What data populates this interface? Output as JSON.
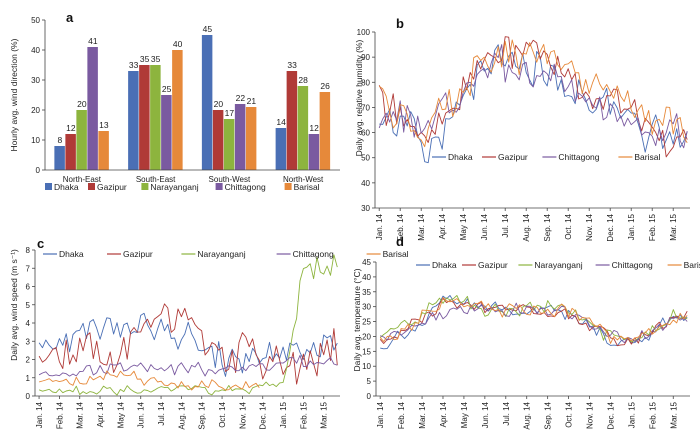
{
  "colors": {
    "Dhaka": "#4a6fb5",
    "Gazipur": "#b03a37",
    "Narayanganj": "#8db43e",
    "Chittagong": "#7a5aa0",
    "Barisal": "#e6893a"
  },
  "chart_data": [
    {
      "panel": "a",
      "type": "bar",
      "ylabel": "Hourly avg. wind direction (%)",
      "ylim": [
        0,
        50
      ],
      "yticks": [
        0,
        10,
        20,
        30,
        40,
        50
      ],
      "categories": [
        "North-East",
        "South-East",
        "South-West",
        "North-West"
      ],
      "series": [
        {
          "name": "Dhaka",
          "values": [
            8,
            33,
            45,
            14
          ]
        },
        {
          "name": "Gazipur",
          "values": [
            12,
            35,
            20,
            33
          ]
        },
        {
          "name": "Narayanganj",
          "values": [
            20,
            35,
            17,
            28
          ]
        },
        {
          "name": "Chittagong",
          "values": [
            41,
            25,
            22,
            12
          ]
        },
        {
          "name": "Barisal",
          "values": [
            13,
            40,
            21,
            26
          ]
        }
      ]
    },
    {
      "panel": "b",
      "type": "line",
      "ylabel": "Daily avg. relative humidity (%)",
      "ylim": [
        30,
        100
      ],
      "yticks": [
        30,
        40,
        50,
        60,
        70,
        80,
        90,
        100
      ],
      "x": [
        "Jan. 14",
        "Feb. 14",
        "Mar. 14",
        "Apr. 14",
        "May 14",
        "Jun. 14",
        "Jul. 14",
        "Aug. 14",
        "Sep. 14",
        "Oct. 14",
        "Nov. 14",
        "Dec. 14",
        "Jan. 15",
        "Feb. 15",
        "Mar. 15"
      ],
      "series": [
        {
          "name": "Dhaka",
          "values": [
            70,
            62,
            52,
            60,
            75,
            86,
            90,
            88,
            84,
            78,
            72,
            70,
            68,
            58,
            55
          ]
        },
        {
          "name": "Gazipur",
          "values": [
            74,
            66,
            56,
            64,
            79,
            90,
            94,
            95,
            88,
            82,
            75,
            73,
            71,
            62,
            58
          ]
        },
        {
          "name": "Chittagong",
          "values": [
            68,
            64,
            60,
            68,
            78,
            87,
            89,
            88,
            85,
            79,
            72,
            67,
            65,
            60,
            59
          ]
        },
        {
          "name": "Barisal",
          "values": [
            76,
            70,
            60,
            66,
            80,
            89,
            92,
            91,
            87,
            83,
            77,
            76,
            74,
            66,
            62
          ]
        }
      ],
      "legend": "center"
    },
    {
      "panel": "c",
      "type": "line",
      "ylabel": "Daily avg. wind speed (m s⁻¹)",
      "ylim": [
        0,
        8
      ],
      "yticks": [
        0,
        1,
        2,
        3,
        4,
        5,
        6,
        7,
        8
      ],
      "x": [
        "Jan. 14",
        "Feb. 14",
        "Mar. 14",
        "Apr. 14",
        "May 14",
        "Jun. 14",
        "Jul. 14",
        "Aug. 14",
        "Sep. 14",
        "Oct. 14",
        "Nov. 14",
        "Dec. 14",
        "Jan. 15",
        "Feb. 15",
        "Mar. 15"
      ],
      "series": [
        {
          "name": "Dhaka",
          "values": [
            2.3,
            2.6,
            3.0,
            3.4,
            3.6,
            3.8,
            3.4,
            3.0,
            2.6,
            2.2,
            2.0,
            2.0,
            2.2,
            2.6,
            2.8
          ]
        },
        {
          "name": "Gazipur",
          "values": [
            1.9,
            2.0,
            2.2,
            2.4,
            2.8,
            3.2,
            4.6,
            3.8,
            3.2,
            2.6,
            2.4,
            1.8,
            1.7,
            1.9,
            2.2
          ]
        },
        {
          "name": "Narayanganj",
          "values": [
            0.3,
            0.3,
            0.3,
            0.3,
            0.3,
            0.3,
            0.4,
            0.4,
            0.3,
            0.3,
            0.3,
            0.4,
            0.6,
            6.6,
            7.1
          ]
        },
        {
          "name": "Chittagong",
          "values": [
            1.3,
            1.4,
            1.5,
            1.6,
            1.7,
            1.7,
            1.6,
            1.6,
            1.5,
            1.5,
            1.5,
            1.6,
            1.7,
            1.8,
            1.9
          ]
        },
        {
          "name": "Barisal",
          "values": [
            0.7,
            0.8,
            0.9,
            1.0,
            1.2,
            1.0,
            0.8,
            0.7,
            0.6,
            0.5,
            0.5,
            0.5,
            null,
            null,
            null
          ]
        }
      ],
      "legend": "top"
    },
    {
      "panel": "d",
      "type": "line",
      "ylabel": "Daily avg. temperature (°C)",
      "ylim": [
        0,
        45
      ],
      "yticks": [
        0,
        5,
        10,
        15,
        20,
        25,
        30,
        35,
        40,
        45
      ],
      "x": [
        "Jan. 14",
        "Feb. 14",
        "Mar. 14",
        "Apr. 14",
        "May 14",
        "Jun. 14",
        "Jul. 14",
        "Aug. 14",
        "Sep. 14",
        "Oct. 14",
        "Nov. 14",
        "Dec. 14",
        "Jan. 15",
        "Feb. 15",
        "Mar. 15"
      ],
      "series": [
        {
          "name": "Dhaka",
          "values": [
            17,
            20,
            25,
            33,
            32,
            30,
            29,
            29,
            29,
            28,
            24,
            19,
            17,
            21,
            26
          ]
        },
        {
          "name": "Gazipur",
          "values": [
            18,
            21,
            26,
            31,
            31,
            30,
            29,
            29,
            29,
            27,
            24,
            20,
            18,
            21,
            26
          ]
        },
        {
          "name": "Narayanganj",
          "values": [
            19,
            22,
            27,
            34,
            33,
            30,
            29,
            29,
            29,
            28,
            25,
            20,
            18,
            22,
            27
          ]
        },
        {
          "name": "Chittagong",
          "values": [
            20,
            22,
            25,
            29,
            30,
            29,
            28,
            29,
            29,
            28,
            25,
            21,
            19,
            22,
            26
          ]
        },
        {
          "name": "Barisal",
          "values": [
            19,
            21,
            26,
            31,
            31,
            30,
            29,
            29,
            29,
            28,
            25,
            20,
            18,
            21,
            26
          ]
        }
      ],
      "legend": "top"
    }
  ]
}
